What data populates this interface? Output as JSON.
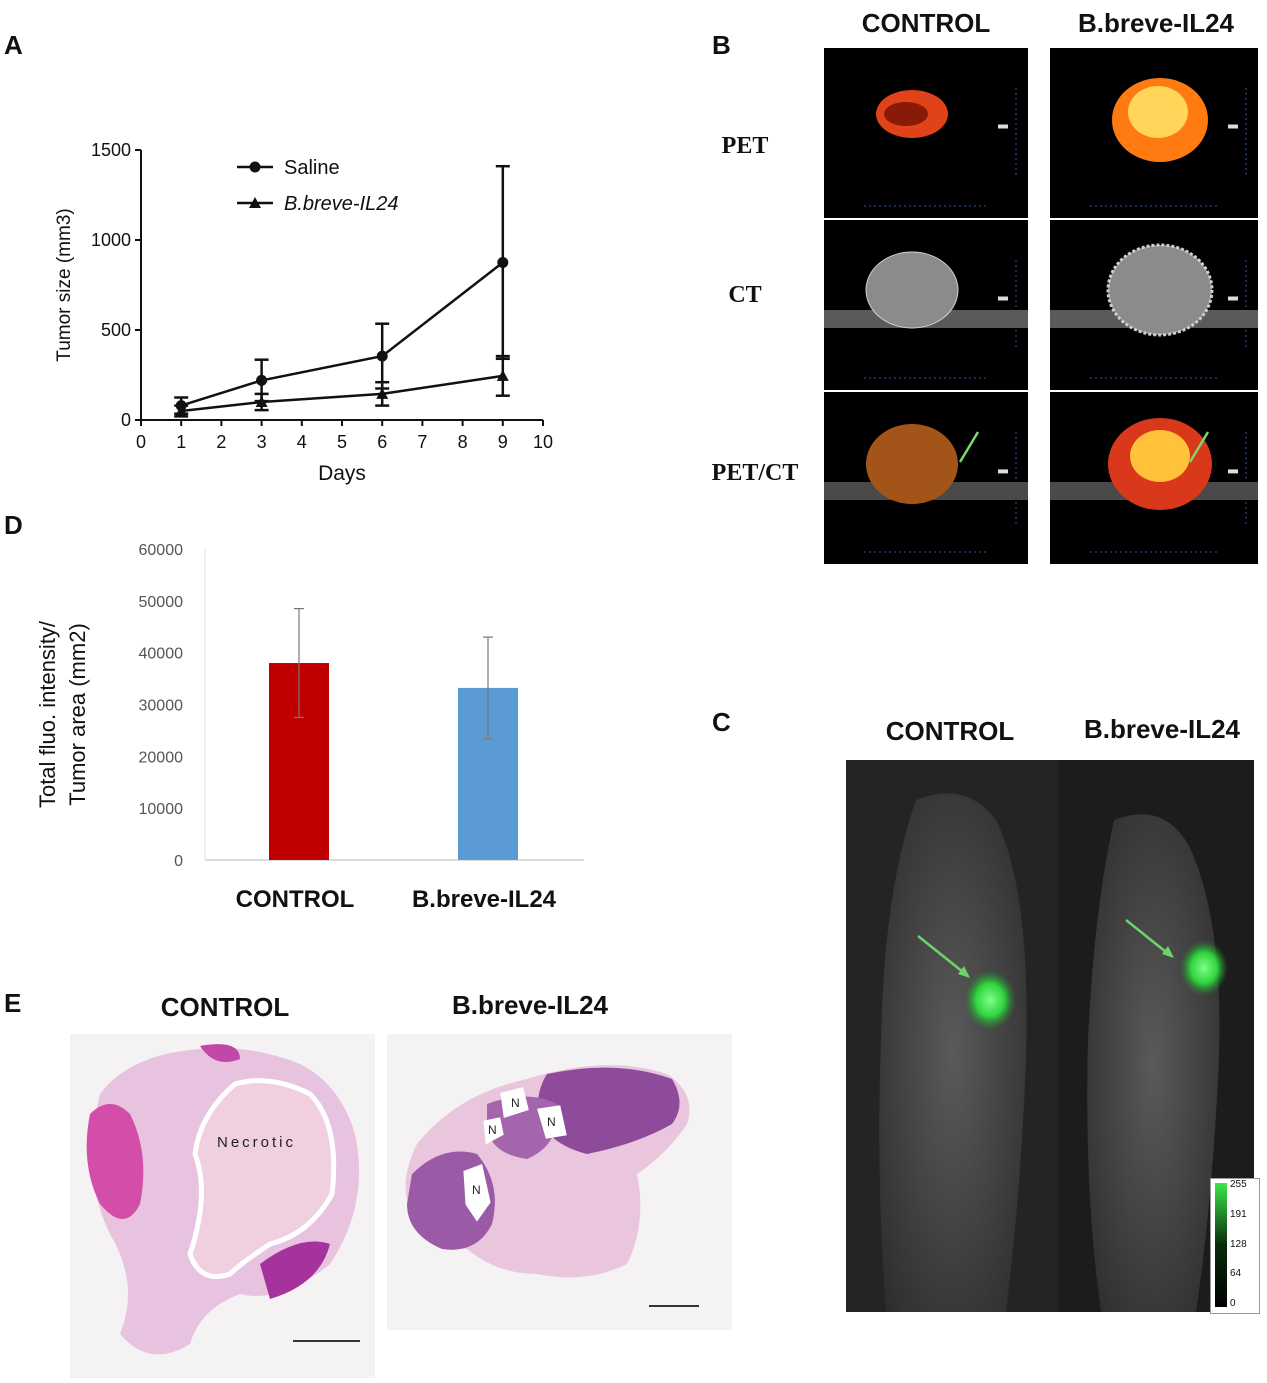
{
  "panels": {
    "A": {
      "letter": "A",
      "chart_data": {
        "type": "line",
        "xlabel": "Days",
        "ylabel": "Tumor size (mm3)",
        "xlim": [
          0,
          10
        ],
        "ylim": [
          0,
          1500
        ],
        "xticks": [
          0,
          1,
          2,
          3,
          4,
          5,
          6,
          7,
          8,
          9,
          10
        ],
        "yticks": [
          0,
          500,
          1000,
          1500
        ],
        "legend_position": "top-center",
        "series": [
          {
            "name": "Saline",
            "marker": "circle",
            "x": [
              1,
              3,
              6,
              9
            ],
            "y": [
              80,
              220,
              355,
              875
            ],
            "err": [
              45,
              115,
              180,
              535
            ]
          },
          {
            "name": "B.breve-IL24",
            "marker": "triangle",
            "x": [
              1,
              3,
              6,
              9
            ],
            "y": [
              50,
              100,
              145,
              245
            ],
            "err": [
              30,
              45,
              65,
              110
            ]
          }
        ]
      }
    },
    "B": {
      "letter": "B",
      "columns": [
        "CONTROL",
        "B.breve-IL24"
      ],
      "rows": [
        "PET",
        "CT",
        "PET/CT"
      ]
    },
    "C": {
      "letter": "C",
      "columns": [
        "CONTROL",
        "B.breve-IL24"
      ],
      "colorbar_ticks": [
        "255",
        "191",
        "128",
        "64",
        "0"
      ],
      "fluor_color": "#3bdc4a"
    },
    "D": {
      "letter": "D",
      "chart_data": {
        "type": "bar",
        "categories": [
          "CONTROL",
          "B.breve-IL24"
        ],
        "values": [
          38000,
          33200
        ],
        "errors": [
          10500,
          9800
        ],
        "colors": [
          "#c00000",
          "#5b9bd5"
        ],
        "ylabel_line1": "Total fluo. intensity/",
        "ylabel_line2": "Tumor area (mm2)",
        "ylim": [
          0,
          60000
        ],
        "yticks": [
          "0",
          "10000",
          "20000",
          "30000",
          "40000",
          "50000",
          "60000"
        ]
      }
    },
    "E": {
      "letter": "E",
      "columns": [
        "CONTROL",
        "B.breve-IL24"
      ],
      "control_annotation": "Necrotic",
      "il24_annotations": [
        "N",
        "N",
        "N",
        "N"
      ]
    }
  }
}
